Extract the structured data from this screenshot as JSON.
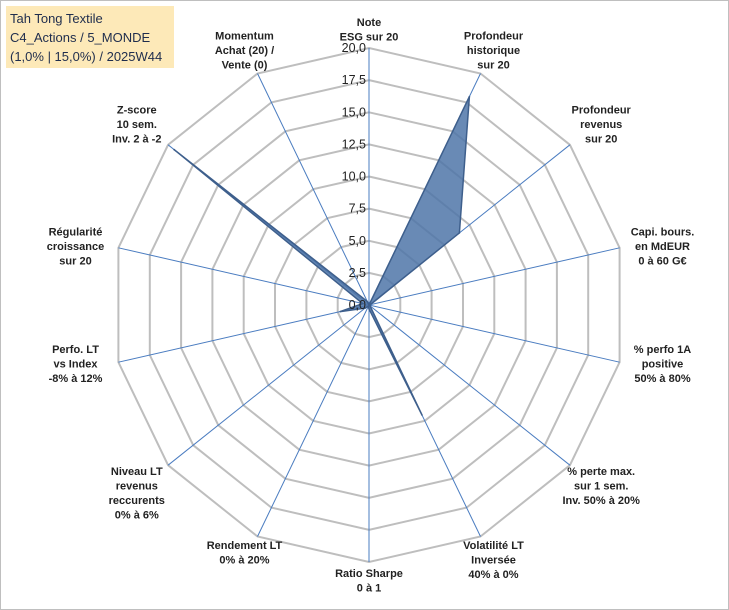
{
  "title_lines": [
    "Tah Tong Textile",
    "C4_Actions / 5_MONDE",
    "(1,0% | 15,0%) / 2025W44"
  ],
  "colors": {
    "fill": "#4f75a8",
    "stroke": "#3e5f8c",
    "grid": "#bebebe",
    "spoke": "#4a7cc0",
    "title_bg": "#fde9b8",
    "title_text": "#1f2d4d"
  },
  "chart_data": {
    "type": "radar",
    "rmin": 0,
    "rmax": 20,
    "tick_labels": [
      "0,0",
      "2,5",
      "5,0",
      "7,5",
      "10,0",
      "12,5",
      "15,0",
      "17,5",
      "20,0"
    ],
    "axes": [
      {
        "lines": [
          "Note",
          "ESG sur 20"
        ],
        "value": 0
      },
      {
        "lines": [
          "Profondeur",
          "historique",
          "sur 20"
        ],
        "value": 18
      },
      {
        "lines": [
          "Profondeur",
          "revenus",
          "sur 20"
        ],
        "value": 9
      },
      {
        "lines": [
          "Capi. bours.",
          "en MdEUR",
          "0 à 60 G€"
        ],
        "value": 0.1
      },
      {
        "lines": [
          "% perfo 1A",
          "positive",
          "50% à 80%"
        ],
        "value": 0.1
      },
      {
        "lines": [
          "% perte max.",
          "sur 1 sem.",
          "Inv. 50% à 20%"
        ],
        "value": 0.1
      },
      {
        "lines": [
          "Volatilité LT",
          "Inversée",
          "40% à 0%"
        ],
        "value": 9.5
      },
      {
        "lines": [
          "Ratio Sharpe",
          "0 à 1"
        ],
        "value": 0.3
      },
      {
        "lines": [
          "Rendement LT",
          "0% à 20%"
        ],
        "value": 0.1
      },
      {
        "lines": [
          "Niveau LT",
          "revenus",
          "reccurents",
          "0% à 6%"
        ],
        "value": 0.4
      },
      {
        "lines": [
          "Perfo. LT",
          "vs Index",
          "-8% à 12%"
        ],
        "value": 2.3
      },
      {
        "lines": [
          "Régularité",
          "croissance",
          "sur 20"
        ],
        "value": 0.5
      },
      {
        "lines": [
          "Z-score",
          "10 sem.",
          "Inv. 2 à -2"
        ],
        "value": 19.4
      },
      {
        "lines": [
          "Momentum",
          "Achat (20) /",
          "Vente (0)"
        ],
        "value": 0.3
      }
    ]
  }
}
